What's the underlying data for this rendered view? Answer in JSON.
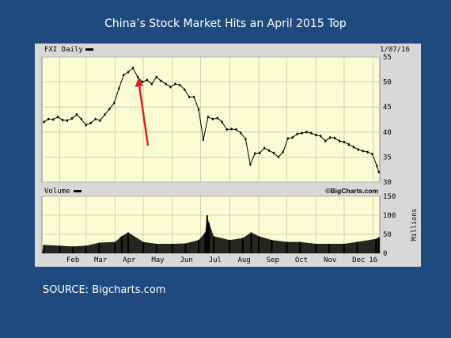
{
  "slide": {
    "title": "China’s Stock Market Hits an April 2015 Top",
    "source": "SOURCE: Bigcharts.com"
  },
  "colors": {
    "background": "#1f4a80",
    "plot_background": "#fbfbd4",
    "frame": "#d8d8d8",
    "price": "#000000",
    "volume_fill": "#000000",
    "arrow": "#dd2222"
  },
  "chart_data": [
    {
      "type": "line",
      "panel": "price",
      "legend": "FXI Daily",
      "date_label": "1/07/16",
      "ylim": [
        30,
        55
      ],
      "yticks": [
        30,
        35,
        40,
        45,
        50,
        55
      ],
      "grid": true,
      "x_months": [
        "Feb",
        "Mar",
        "Apr",
        "May",
        "Jun",
        "Jul",
        "Aug",
        "Sep",
        "Oct",
        "Nov",
        "Dec",
        "16"
      ],
      "series": [
        {
          "x": [
            "2015-01-15",
            "2015-01-20",
            "2015-01-25",
            "2015-01-30",
            "2015-02-04",
            "2015-02-09",
            "2015-02-14",
            "2015-02-19",
            "2015-02-24",
            "2015-03-01",
            "2015-03-06",
            "2015-03-11",
            "2015-03-16",
            "2015-03-21",
            "2015-03-26",
            "2015-03-31",
            "2015-04-05",
            "2015-04-10",
            "2015-04-15",
            "2015-04-20",
            "2015-04-25",
            "2015-04-30",
            "2015-05-05",
            "2015-05-10",
            "2015-05-15",
            "2015-05-20",
            "2015-05-25",
            "2015-05-30",
            "2015-06-04",
            "2015-06-09",
            "2015-06-14",
            "2015-06-19",
            "2015-06-24",
            "2015-06-29",
            "2015-07-04",
            "2015-07-09",
            "2015-07-14",
            "2015-07-19",
            "2015-07-24",
            "2015-07-29",
            "2015-08-03",
            "2015-08-08",
            "2015-08-13",
            "2015-08-18",
            "2015-08-23",
            "2015-08-28",
            "2015-09-02",
            "2015-09-07",
            "2015-09-12",
            "2015-09-17",
            "2015-09-22",
            "2015-09-27",
            "2015-10-02",
            "2015-10-07",
            "2015-10-12",
            "2015-10-17",
            "2015-10-22",
            "2015-10-27",
            "2015-11-01",
            "2015-11-06",
            "2015-11-11",
            "2015-11-16",
            "2015-11-21",
            "2015-11-26",
            "2015-12-01",
            "2015-12-06",
            "2015-12-11",
            "2015-12-16",
            "2015-12-21",
            "2015-12-26",
            "2015-12-31",
            "2016-01-05",
            "2016-01-07"
          ],
          "y": [
            42.0,
            42.6,
            42.5,
            43.0,
            42.4,
            42.3,
            42.7,
            43.5,
            42.6,
            41.4,
            41.8,
            42.6,
            42.3,
            43.5,
            44.6,
            45.8,
            48.7,
            51.4,
            52.0,
            52.8,
            51.0,
            50.0,
            50.4,
            49.6,
            51.0,
            50.2,
            49.6,
            49.0,
            49.6,
            49.4,
            48.5,
            47.0,
            47.0,
            44.5,
            38.5,
            43.0,
            42.6,
            42.8,
            42.0,
            40.5,
            40.6,
            40.5,
            39.8,
            38.6,
            33.5,
            35.7,
            35.8,
            36.8,
            36.3,
            35.8,
            35.0,
            36.0,
            38.7,
            38.9,
            39.6,
            39.8,
            40.0,
            39.8,
            39.4,
            39.2,
            38.2,
            38.9,
            38.8,
            38.2,
            38.0,
            37.5,
            37.0,
            36.5,
            36.2,
            36.0,
            35.6,
            33.2,
            32.0
          ]
        }
      ]
    },
    {
      "type": "bar",
      "panel": "volume",
      "legend": "Volume",
      "watermark": "©BigCharts.com",
      "ylabel": "Millions",
      "ylim": [
        0,
        150
      ],
      "yticks": [
        0,
        50,
        100,
        150
      ],
      "series": [
        {
          "x": [
            "2015-01-15",
            "2015-02-01",
            "2015-02-15",
            "2015-03-01",
            "2015-03-15",
            "2015-04-01",
            "2015-04-08",
            "2015-04-15",
            "2015-05-01",
            "2015-05-15",
            "2015-06-01",
            "2015-06-15",
            "2015-06-29",
            "2015-07-06",
            "2015-07-08",
            "2015-07-10",
            "2015-07-15",
            "2015-08-01",
            "2015-08-15",
            "2015-08-24",
            "2015-09-01",
            "2015-09-15",
            "2015-10-01",
            "2015-10-15",
            "2015-11-01",
            "2015-11-15",
            "2015-12-01",
            "2015-12-15",
            "2016-01-04",
            "2016-01-07"
          ],
          "y": [
            22,
            20,
            18,
            20,
            28,
            30,
            45,
            55,
            30,
            25,
            25,
            26,
            35,
            55,
            100,
            80,
            45,
            35,
            40,
            55,
            45,
            35,
            30,
            30,
            25,
            25,
            25,
            30,
            38,
            42
          ]
        }
      ]
    }
  ]
}
